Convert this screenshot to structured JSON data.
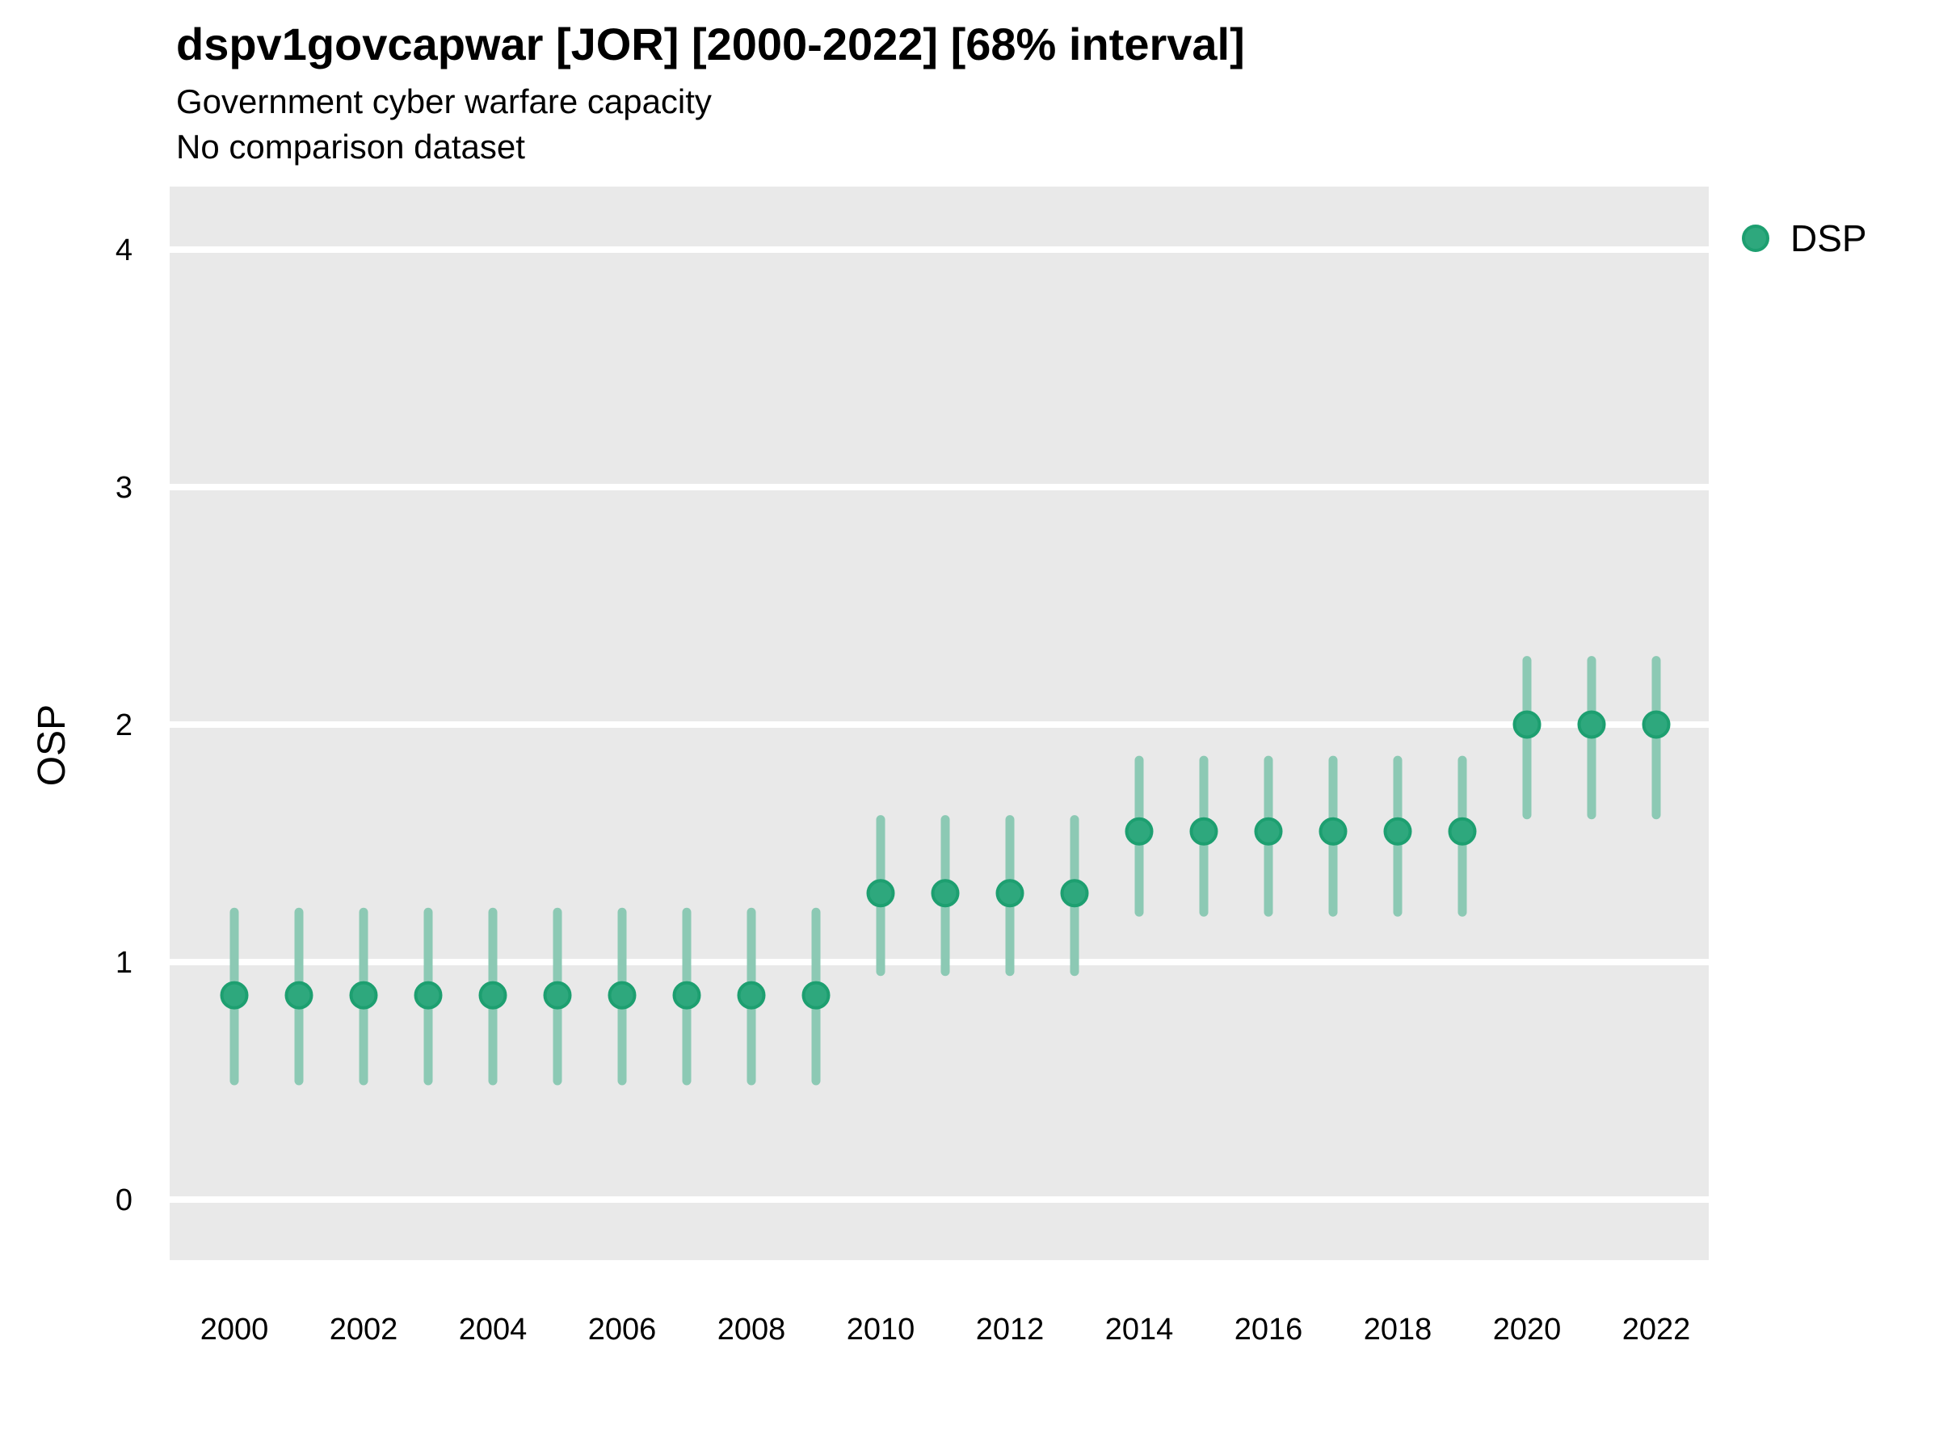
{
  "header": {
    "title": "dspv1govcapwar [JOR] [2000-2022] [68% interval]",
    "subtitle": "Government cyber warfare capacity",
    "comparison_note": "No comparison dataset"
  },
  "legend": {
    "position": "right",
    "items": [
      {
        "label": "DSP",
        "symbol": "circle-icon",
        "color": "#2EA87D"
      }
    ]
  },
  "colors": {
    "point_fill": "#2EA87D",
    "point_stroke": "#1D9F70",
    "interval_bar": "#8CC9B4",
    "panel_background": "#E9E9E9",
    "gridline": "#FFFFFF",
    "text": "#000000",
    "page_background": "#FFFFFF"
  },
  "chart_data": {
    "type": "scatter",
    "subtype": "pointrange",
    "title": "dspv1govcapwar [JOR] [2000-2022] [68% interval]",
    "subtitle": "Government cyber warfare capacity",
    "note": "No comparison dataset",
    "interval_level": "68%",
    "xlabel": "",
    "ylabel": "OSP",
    "x_ticks": [
      2000,
      2002,
      2004,
      2006,
      2008,
      2010,
      2012,
      2014,
      2016,
      2018,
      2020,
      2022
    ],
    "y_ticks": [
      0,
      1,
      2,
      3,
      4
    ],
    "xlim": [
      1999,
      2022.8
    ],
    "ylim": [
      -0.26,
      4.27
    ],
    "grid": "major-horizontal-only",
    "legend_position": "right",
    "series": [
      {
        "name": "DSP",
        "points": [
          {
            "year": 2000,
            "value": 0.86,
            "lo": 0.5,
            "hi": 1.21
          },
          {
            "year": 2001,
            "value": 0.86,
            "lo": 0.5,
            "hi": 1.21
          },
          {
            "year": 2002,
            "value": 0.86,
            "lo": 0.5,
            "hi": 1.21
          },
          {
            "year": 2003,
            "value": 0.86,
            "lo": 0.5,
            "hi": 1.21
          },
          {
            "year": 2004,
            "value": 0.86,
            "lo": 0.5,
            "hi": 1.21
          },
          {
            "year": 2005,
            "value": 0.86,
            "lo": 0.5,
            "hi": 1.21
          },
          {
            "year": 2006,
            "value": 0.86,
            "lo": 0.5,
            "hi": 1.21
          },
          {
            "year": 2007,
            "value": 0.86,
            "lo": 0.5,
            "hi": 1.21
          },
          {
            "year": 2008,
            "value": 0.86,
            "lo": 0.5,
            "hi": 1.21
          },
          {
            "year": 2009,
            "value": 0.86,
            "lo": 0.5,
            "hi": 1.21
          },
          {
            "year": 2010,
            "value": 1.29,
            "lo": 0.96,
            "hi": 1.6
          },
          {
            "year": 2011,
            "value": 1.29,
            "lo": 0.96,
            "hi": 1.6
          },
          {
            "year": 2012,
            "value": 1.29,
            "lo": 0.96,
            "hi": 1.6
          },
          {
            "year": 2013,
            "value": 1.29,
            "lo": 0.96,
            "hi": 1.6
          },
          {
            "year": 2014,
            "value": 1.55,
            "lo": 1.21,
            "hi": 1.85
          },
          {
            "year": 2015,
            "value": 1.55,
            "lo": 1.21,
            "hi": 1.85
          },
          {
            "year": 2016,
            "value": 1.55,
            "lo": 1.21,
            "hi": 1.85
          },
          {
            "year": 2017,
            "value": 1.55,
            "lo": 1.21,
            "hi": 1.85
          },
          {
            "year": 2018,
            "value": 1.55,
            "lo": 1.21,
            "hi": 1.85
          },
          {
            "year": 2019,
            "value": 1.55,
            "lo": 1.21,
            "hi": 1.85
          },
          {
            "year": 2020,
            "value": 2.0,
            "lo": 1.62,
            "hi": 2.27
          },
          {
            "year": 2021,
            "value": 2.0,
            "lo": 1.62,
            "hi": 2.27
          },
          {
            "year": 2022,
            "value": 2.0,
            "lo": 1.62,
            "hi": 2.27
          }
        ]
      }
    ]
  }
}
